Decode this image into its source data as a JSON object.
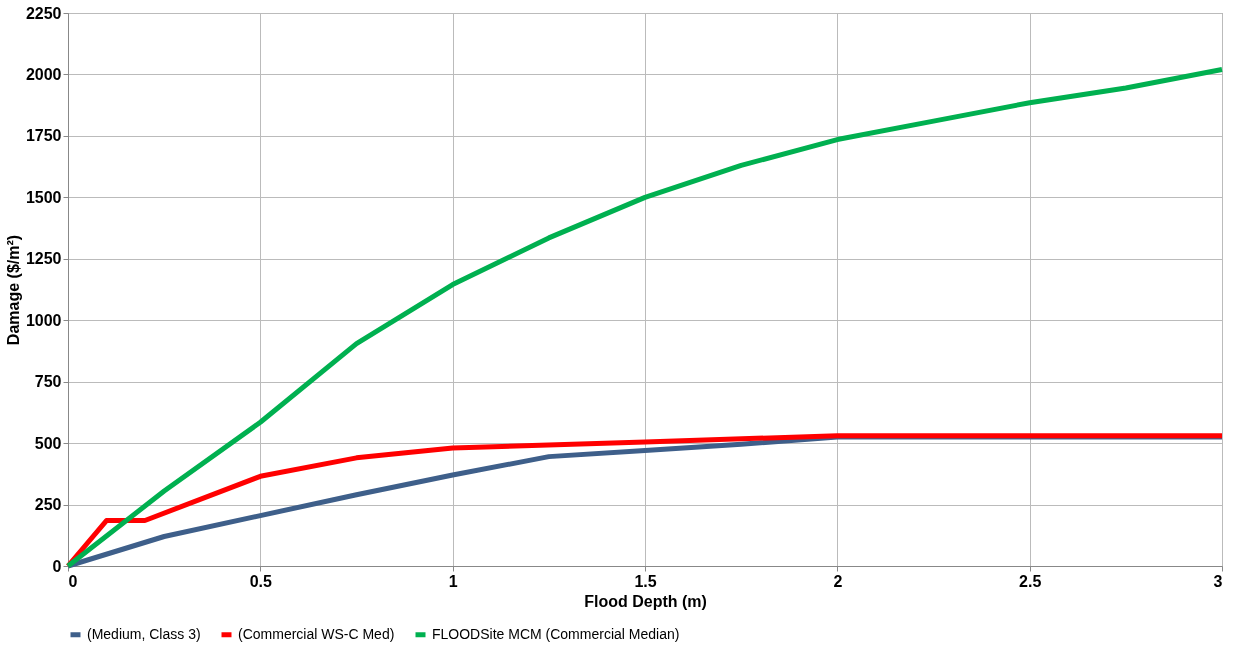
{
  "chart_data": {
    "type": "line",
    "xlabel": "Flood Depth (m)",
    "ylabel": "Damage ($/m²)",
    "xlim": [
      0,
      3
    ],
    "xticks": [
      0,
      0.5,
      1,
      1.5,
      2,
      2.5,
      3
    ],
    "ylim": [
      0,
      2250
    ],
    "yticks": [
      0,
      250,
      500,
      750,
      1000,
      1250,
      1500,
      1750,
      2000,
      2250
    ],
    "grid": true,
    "legend": "bottom",
    "marker": "none",
    "line_style": "solid",
    "series": [
      {
        "name": "(Medium, Class 3)",
        "color": "#3e5f8a",
        "x": [
          0,
          0.25,
          0.5,
          0.75,
          1,
          1.25,
          1.5,
          1.75,
          2,
          3
        ],
        "values": [
          0,
          120,
          205,
          290,
          370,
          445,
          470,
          495,
          525,
          525
        ]
      },
      {
        "name": "(Commercial WS-C Med)",
        "color": "#ff0000",
        "x": [
          0,
          0.1,
          0.2,
          0.5,
          0.75,
          1,
          1.5,
          2,
          3
        ],
        "values": [
          0,
          185,
          185,
          365,
          440,
          480,
          505,
          530,
          530
        ]
      },
      {
        "name": "FLOODSite MCM (Commercial Median)",
        "color": "#00b050",
        "x": [
          0,
          0.25,
          0.5,
          0.75,
          1,
          1.25,
          1.5,
          1.75,
          2,
          2.25,
          2.5,
          2.75,
          3
        ],
        "values": [
          0,
          305,
          585,
          905,
          1145,
          1335,
          1500,
          1630,
          1735,
          1810,
          1885,
          1945,
          2020
        ]
      }
    ]
  }
}
